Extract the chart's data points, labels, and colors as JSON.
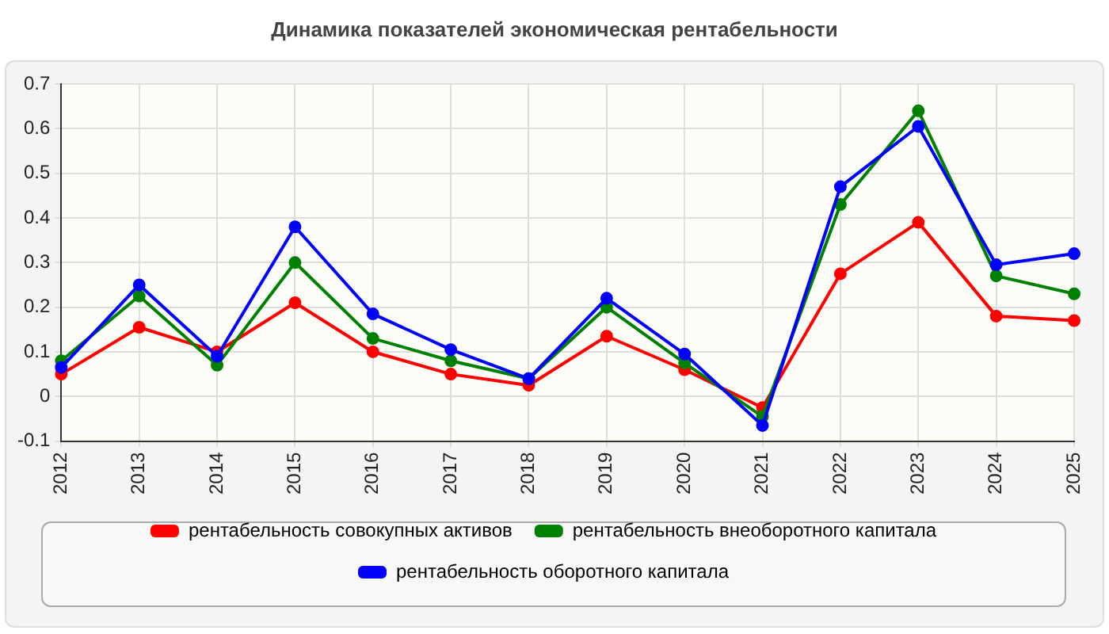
{
  "chart_data": {
    "type": "line",
    "title": "Динамика показателей экономическая рентабельности",
    "categories": [
      "2012",
      "2013",
      "2014",
      "2015",
      "2016",
      "2017",
      "2018",
      "2019",
      "2020",
      "2021",
      "2022",
      "2023",
      "2024",
      "2025"
    ],
    "series": [
      {
        "name": "рентабельность совокупных активов",
        "color": "#ff0000",
        "values": [
          0.05,
          0.155,
          0.1,
          0.21,
          0.1,
          0.05,
          0.025,
          0.135,
          0.06,
          -0.025,
          0.275,
          0.39,
          0.18,
          0.17
        ]
      },
      {
        "name": "рентабельность внеоборотного капитала",
        "color": "#008000",
        "values": [
          0.08,
          0.225,
          0.07,
          0.3,
          0.13,
          0.08,
          0.04,
          0.2,
          0.075,
          -0.045,
          0.43,
          0.64,
          0.27,
          0.23
        ]
      },
      {
        "name": "рентабельность оборотного капитала",
        "color": "#0000ff",
        "values": [
          0.065,
          0.25,
          0.09,
          0.38,
          0.185,
          0.105,
          0.04,
          0.22,
          0.095,
          -0.065,
          0.47,
          0.605,
          0.295,
          0.32
        ]
      }
    ],
    "ylim": [
      -0.1,
      0.7
    ],
    "yticks": [
      -0.1,
      0,
      0.1,
      0.2,
      0.3,
      0.4,
      0.5,
      0.6,
      0.7
    ],
    "grid": true,
    "legend": "bottom",
    "marker": "circle",
    "line_style": "solid"
  }
}
